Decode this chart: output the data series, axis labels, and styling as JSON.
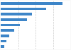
{
  "values": [
    13,
    9.5,
    6.5,
    5.5,
    4.0,
    2.8,
    1.8,
    1.2,
    0.8
  ],
  "bar_color": "#3d85c8",
  "background_color": "#f9f9f9",
  "plot_bg_color": "#ffffff",
  "grid_color": "#cccccc",
  "figsize": [
    1.0,
    0.71
  ],
  "dpi": 100
}
